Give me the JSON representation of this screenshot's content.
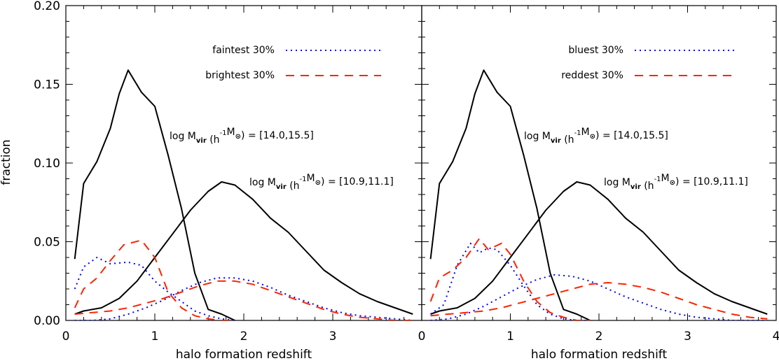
{
  "figure": {
    "ylabel": "fraction"
  },
  "chart_data": [
    {
      "type": "line",
      "xlabel": "halo formation redshift",
      "ylabel": "fraction",
      "xlim": [
        0,
        4
      ],
      "ylim": [
        0,
        0.2
      ],
      "x_ticks": [
        "0",
        "1",
        "2",
        "3"
      ],
      "y_ticks": [
        "0.00",
        "0.05",
        "0.10",
        "0.15",
        "0.20"
      ],
      "legend": [
        {
          "label": "faintest 30%",
          "style": "dotted",
          "color": "#0000ff"
        },
        {
          "label": "brightest 30%",
          "style": "dashed",
          "color": "#ff2200"
        }
      ],
      "annotations": [
        {
          "text": "log M_vir (h^-1 M_⊙) = [14.0,15.5]"
        },
        {
          "text": "log M_vir (h^-1 M_⊙) = [10.9,11.1]"
        }
      ],
      "series": [
        {
          "style": "solid",
          "color": "#000000",
          "x": [
            0.1,
            0.2,
            0.35,
            0.5,
            0.6,
            0.7,
            0.85,
            1.0,
            1.15,
            1.3,
            1.45,
            1.6,
            1.75,
            1.9
          ],
          "y": [
            0.039,
            0.087,
            0.101,
            0.122,
            0.144,
            0.159,
            0.145,
            0.136,
            0.105,
            0.071,
            0.03,
            0.007,
            0.004,
            0.0
          ]
        },
        {
          "style": "solid",
          "color": "#000000",
          "x": [
            0.1,
            0.2,
            0.4,
            0.6,
            0.8,
            1.0,
            1.2,
            1.4,
            1.6,
            1.75,
            1.9,
            2.1,
            2.3,
            2.5,
            2.7,
            2.9,
            3.1,
            3.3,
            3.5,
            3.7,
            3.9
          ],
          "y": [
            0.004,
            0.006,
            0.008,
            0.014,
            0.025,
            0.04,
            0.055,
            0.07,
            0.082,
            0.088,
            0.086,
            0.077,
            0.065,
            0.056,
            0.044,
            0.032,
            0.024,
            0.017,
            0.012,
            0.008,
            0.004
          ]
        },
        {
          "style": "dotted",
          "color": "#0000ff",
          "x": [
            0.1,
            0.2,
            0.35,
            0.5,
            0.7,
            0.85,
            1.0,
            1.15,
            1.3,
            1.45,
            1.6,
            1.75,
            1.9
          ],
          "y": [
            0.02,
            0.034,
            0.04,
            0.036,
            0.037,
            0.035,
            0.025,
            0.018,
            0.012,
            0.006,
            0.003,
            0.001,
            0.0
          ]
        },
        {
          "style": "dashed",
          "color": "#ff2200",
          "x": [
            0.1,
            0.2,
            0.35,
            0.5,
            0.65,
            0.85,
            1.0,
            1.15,
            1.3,
            1.45,
            1.6,
            1.75,
            1.9
          ],
          "y": [
            0.008,
            0.02,
            0.027,
            0.038,
            0.048,
            0.051,
            0.04,
            0.018,
            0.008,
            0.003,
            0.001,
            0.0,
            0.0
          ]
        },
        {
          "style": "dotted",
          "color": "#0000ff",
          "x": [
            0.1,
            0.3,
            0.5,
            0.7,
            0.9,
            1.1,
            1.3,
            1.5,
            1.7,
            1.9,
            2.1,
            2.3,
            2.5,
            2.7,
            2.9,
            3.1,
            3.3,
            3.5,
            3.7,
            3.9
          ],
          "y": [
            0.0,
            0.0,
            0.001,
            0.004,
            0.008,
            0.013,
            0.019,
            0.024,
            0.027,
            0.027,
            0.025,
            0.021,
            0.016,
            0.012,
            0.008,
            0.005,
            0.003,
            0.002,
            0.001,
            0.0
          ]
        },
        {
          "style": "dashed",
          "color": "#ff2200",
          "x": [
            0.1,
            0.3,
            0.5,
            0.7,
            0.9,
            1.1,
            1.3,
            1.5,
            1.7,
            1.9,
            2.1,
            2.3,
            2.5,
            2.7,
            2.9,
            3.1,
            3.3,
            3.5,
            3.7,
            3.9
          ],
          "y": [
            0.004,
            0.005,
            0.006,
            0.008,
            0.011,
            0.014,
            0.018,
            0.022,
            0.025,
            0.025,
            0.023,
            0.019,
            0.015,
            0.011,
            0.007,
            0.004,
            0.002,
            0.001,
            0.0,
            0.0
          ]
        }
      ]
    },
    {
      "type": "line",
      "xlabel": "halo formation redshift",
      "ylabel": "",
      "xlim": [
        0,
        4
      ],
      "ylim": [
        0,
        0.2
      ],
      "x_ticks": [
        "0",
        "1",
        "2",
        "3",
        "4"
      ],
      "legend": [
        {
          "label": "bluest 30%",
          "style": "dotted",
          "color": "#0000ff"
        },
        {
          "label": "reddest 30%",
          "style": "dashed",
          "color": "#ff2200"
        }
      ],
      "annotations": [
        {
          "text": "log M_vir (h^-1 M_⊙) = [14.0,15.5]"
        },
        {
          "text": "log M_vir (h^-1 M_⊙) = [10.9,11.1]"
        }
      ],
      "series": [
        {
          "style": "solid",
          "color": "#000000",
          "x": [
            0.1,
            0.2,
            0.35,
            0.5,
            0.6,
            0.7,
            0.85,
            1.0,
            1.15,
            1.3,
            1.45,
            1.6,
            1.75,
            1.9
          ],
          "y": [
            0.039,
            0.087,
            0.101,
            0.122,
            0.144,
            0.159,
            0.145,
            0.136,
            0.105,
            0.071,
            0.03,
            0.007,
            0.004,
            0.0
          ]
        },
        {
          "style": "solid",
          "color": "#000000",
          "x": [
            0.1,
            0.2,
            0.4,
            0.6,
            0.8,
            1.0,
            1.2,
            1.4,
            1.6,
            1.75,
            1.9,
            2.1,
            2.3,
            2.5,
            2.7,
            2.9,
            3.1,
            3.3,
            3.5,
            3.7,
            3.9
          ],
          "y": [
            0.004,
            0.006,
            0.008,
            0.014,
            0.025,
            0.04,
            0.055,
            0.07,
            0.082,
            0.088,
            0.086,
            0.077,
            0.065,
            0.056,
            0.044,
            0.032,
            0.024,
            0.017,
            0.012,
            0.008,
            0.004
          ]
        },
        {
          "style": "dotted",
          "color": "#0000ff",
          "x": [
            0.1,
            0.25,
            0.4,
            0.55,
            0.65,
            0.75,
            0.85,
            1.0,
            1.15,
            1.3,
            1.45,
            1.6,
            1.75,
            1.9
          ],
          "y": [
            0.004,
            0.01,
            0.035,
            0.049,
            0.043,
            0.046,
            0.045,
            0.035,
            0.022,
            0.01,
            0.004,
            0.001,
            0.0,
            0.0
          ]
        },
        {
          "style": "dashed",
          "color": "#ff2200",
          "x": [
            0.1,
            0.2,
            0.35,
            0.5,
            0.65,
            0.75,
            0.9,
            1.0,
            1.15,
            1.3,
            1.45,
            1.6,
            1.75,
            1.9
          ],
          "y": [
            0.012,
            0.027,
            0.032,
            0.04,
            0.052,
            0.045,
            0.049,
            0.042,
            0.025,
            0.012,
            0.005,
            0.002,
            0.0,
            0.0
          ]
        },
        {
          "style": "dotted",
          "color": "#0000ff",
          "x": [
            0.1,
            0.3,
            0.5,
            0.7,
            0.9,
            1.1,
            1.3,
            1.5,
            1.7,
            1.9,
            2.1,
            2.3,
            2.5,
            2.7,
            2.9,
            3.1,
            3.3,
            3.5,
            3.7,
            3.9
          ],
          "y": [
            0.0,
            0.001,
            0.004,
            0.009,
            0.015,
            0.021,
            0.026,
            0.029,
            0.028,
            0.025,
            0.02,
            0.015,
            0.011,
            0.007,
            0.004,
            0.002,
            0.001,
            0.0,
            0.0,
            0.0
          ]
        },
        {
          "style": "dashed",
          "color": "#ff2200",
          "x": [
            0.1,
            0.3,
            0.5,
            0.7,
            0.9,
            1.1,
            1.3,
            1.5,
            1.7,
            1.9,
            2.1,
            2.3,
            2.5,
            2.7,
            2.9,
            3.1,
            3.3,
            3.5,
            3.7,
            3.9
          ],
          "y": [
            0.003,
            0.004,
            0.005,
            0.006,
            0.008,
            0.011,
            0.014,
            0.017,
            0.02,
            0.023,
            0.024,
            0.023,
            0.021,
            0.018,
            0.014,
            0.01,
            0.007,
            0.004,
            0.002,
            0.001
          ]
        }
      ]
    }
  ]
}
